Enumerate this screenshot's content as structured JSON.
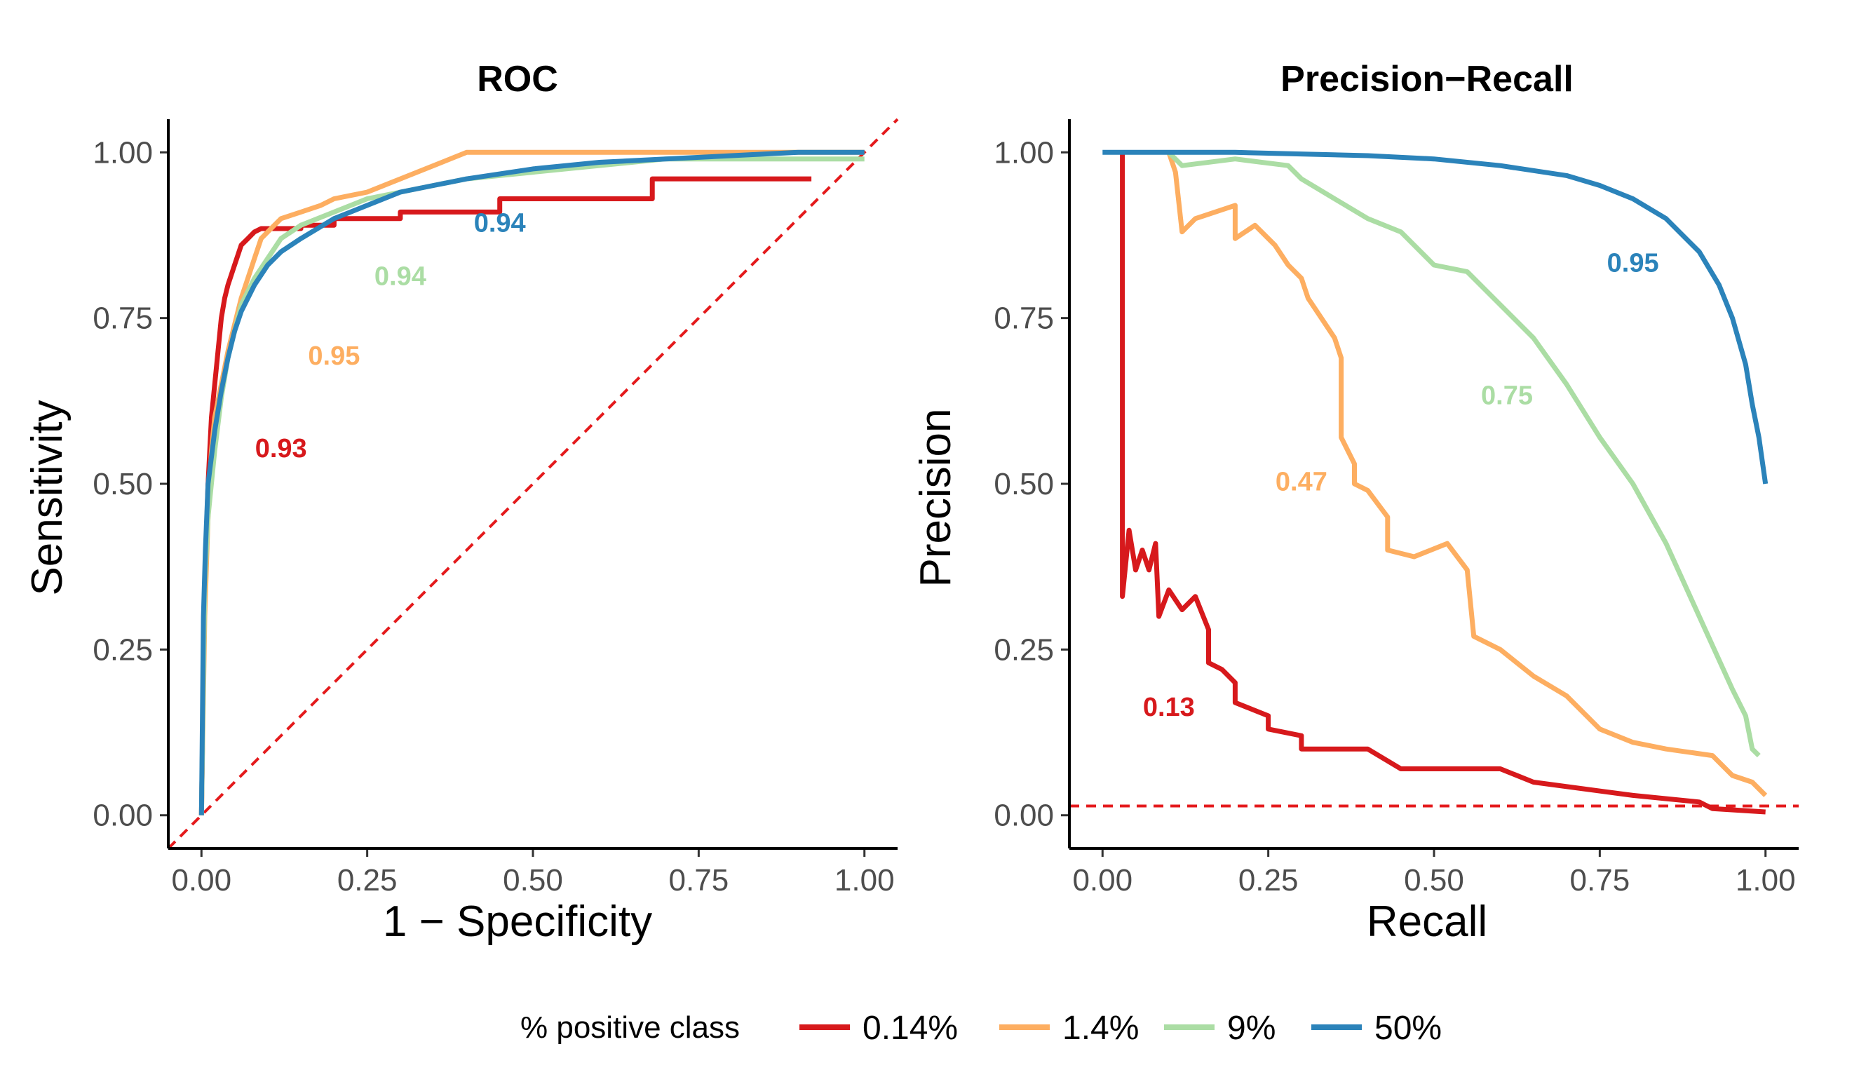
{
  "legend": {
    "title": "% positive class",
    "position": "bottom",
    "items": [
      {
        "label": "0.14%",
        "color": "#d7191c"
      },
      {
        "label": "1.4%",
        "color": "#fdae61"
      },
      {
        "label": "9%",
        "color": "#abdda4"
      },
      {
        "label": "50%",
        "color": "#2b83ba"
      }
    ]
  },
  "chart_data": [
    {
      "type": "line",
      "title": "ROC",
      "xlabel": "1 − Specificity",
      "ylabel": "Sensitivity",
      "xlim": [
        -0.05,
        1.05
      ],
      "ylim": [
        -0.05,
        1.05
      ],
      "xticks": [
        "0.00",
        "0.25",
        "0.50",
        "0.75",
        "1.00"
      ],
      "yticks": [
        "0.00",
        "0.25",
        "0.50",
        "0.75",
        "1.00"
      ],
      "grid": false,
      "reference_line": {
        "type": "diagonal",
        "from": [
          0,
          0
        ],
        "to": [
          1,
          1
        ],
        "color": "#e41a1c",
        "dashed": true
      },
      "series": [
        {
          "name": "0.14%",
          "color": "#d7191c",
          "auc": "0.93",
          "auc_at": [
            0.12,
            0.54
          ],
          "points": [
            [
              0,
              0
            ],
            [
              0.005,
              0.35
            ],
            [
              0.01,
              0.5
            ],
            [
              0.015,
              0.6
            ],
            [
              0.02,
              0.65
            ],
            [
              0.025,
              0.7
            ],
            [
              0.03,
              0.75
            ],
            [
              0.035,
              0.78
            ],
            [
              0.04,
              0.8
            ],
            [
              0.05,
              0.83
            ],
            [
              0.06,
              0.86
            ],
            [
              0.07,
              0.87
            ],
            [
              0.08,
              0.88
            ],
            [
              0.09,
              0.885
            ],
            [
              0.15,
              0.885
            ],
            [
              0.15,
              0.89
            ],
            [
              0.2,
              0.89
            ],
            [
              0.2,
              0.9
            ],
            [
              0.3,
              0.9
            ],
            [
              0.3,
              0.91
            ],
            [
              0.45,
              0.91
            ],
            [
              0.45,
              0.93
            ],
            [
              0.68,
              0.93
            ],
            [
              0.68,
              0.96
            ],
            [
              0.92,
              0.96
            ]
          ]
        },
        {
          "name": "1.4%",
          "color": "#fdae61",
          "auc": "0.95",
          "auc_at": [
            0.2,
            0.68
          ],
          "points": [
            [
              0,
              0
            ],
            [
              0.005,
              0.3
            ],
            [
              0.01,
              0.45
            ],
            [
              0.015,
              0.55
            ],
            [
              0.02,
              0.6
            ],
            [
              0.03,
              0.65
            ],
            [
              0.04,
              0.7
            ],
            [
              0.05,
              0.74
            ],
            [
              0.06,
              0.78
            ],
            [
              0.07,
              0.81
            ],
            [
              0.08,
              0.84
            ],
            [
              0.09,
              0.87
            ],
            [
              0.1,
              0.88
            ],
            [
              0.12,
              0.9
            ],
            [
              0.15,
              0.91
            ],
            [
              0.18,
              0.92
            ],
            [
              0.2,
              0.93
            ],
            [
              0.25,
              0.94
            ],
            [
              0.3,
              0.96
            ],
            [
              0.35,
              0.98
            ],
            [
              0.4,
              1.0
            ],
            [
              1.0,
              1.0
            ]
          ]
        },
        {
          "name": "9%",
          "color": "#abdda4",
          "auc": "0.94",
          "auc_at": [
            0.3,
            0.8
          ],
          "points": [
            [
              0,
              0
            ],
            [
              0.005,
              0.35
            ],
            [
              0.01,
              0.45
            ],
            [
              0.02,
              0.55
            ],
            [
              0.03,
              0.63
            ],
            [
              0.04,
              0.69
            ],
            [
              0.05,
              0.73
            ],
            [
              0.06,
              0.77
            ],
            [
              0.08,
              0.81
            ],
            [
              0.1,
              0.84
            ],
            [
              0.12,
              0.87
            ],
            [
              0.15,
              0.89
            ],
            [
              0.2,
              0.91
            ],
            [
              0.25,
              0.93
            ],
            [
              0.3,
              0.94
            ],
            [
              0.35,
              0.95
            ],
            [
              0.4,
              0.96
            ],
            [
              0.5,
              0.97
            ],
            [
              0.6,
              0.98
            ],
            [
              0.7,
              0.99
            ],
            [
              0.8,
              0.99
            ],
            [
              1.0,
              0.99
            ]
          ]
        },
        {
          "name": "50%",
          "color": "#2b83ba",
          "auc": "0.94",
          "auc_at": [
            0.45,
            0.88
          ],
          "points": [
            [
              0,
              0
            ],
            [
              0.003,
              0.3
            ],
            [
              0.006,
              0.4
            ],
            [
              0.01,
              0.5
            ],
            [
              0.02,
              0.58
            ],
            [
              0.03,
              0.64
            ],
            [
              0.04,
              0.69
            ],
            [
              0.05,
              0.73
            ],
            [
              0.06,
              0.76
            ],
            [
              0.08,
              0.8
            ],
            [
              0.1,
              0.83
            ],
            [
              0.12,
              0.85
            ],
            [
              0.15,
              0.87
            ],
            [
              0.2,
              0.9
            ],
            [
              0.25,
              0.92
            ],
            [
              0.3,
              0.94
            ],
            [
              0.35,
              0.95
            ],
            [
              0.4,
              0.96
            ],
            [
              0.5,
              0.975
            ],
            [
              0.6,
              0.985
            ],
            [
              0.7,
              0.99
            ],
            [
              0.8,
              0.995
            ],
            [
              0.9,
              1.0
            ],
            [
              1.0,
              1.0
            ]
          ]
        }
      ]
    },
    {
      "type": "line",
      "title": "Precision−Recall",
      "xlabel": "Recall",
      "ylabel": "Precision",
      "xlim": [
        -0.05,
        1.05
      ],
      "ylim": [
        -0.05,
        1.05
      ],
      "xticks": [
        "0.00",
        "0.25",
        "0.50",
        "0.75",
        "1.00"
      ],
      "yticks": [
        "0.00",
        "0.25",
        "0.50",
        "0.75",
        "1.00"
      ],
      "grid": false,
      "reference_line": {
        "type": "horizontal",
        "y": 0.014,
        "color": "#e41a1c",
        "dashed": true
      },
      "series": [
        {
          "name": "0.14%",
          "color": "#d7191c",
          "auc": "0.13",
          "auc_at": [
            0.1,
            0.15
          ],
          "points": [
            [
              0.03,
              1.0
            ],
            [
              0.03,
              0.33
            ],
            [
              0.04,
              0.43
            ],
            [
              0.05,
              0.37
            ],
            [
              0.06,
              0.4
            ],
            [
              0.07,
              0.37
            ],
            [
              0.08,
              0.41
            ],
            [
              0.085,
              0.3
            ],
            [
              0.1,
              0.34
            ],
            [
              0.12,
              0.31
            ],
            [
              0.14,
              0.33
            ],
            [
              0.16,
              0.28
            ],
            [
              0.16,
              0.23
            ],
            [
              0.18,
              0.22
            ],
            [
              0.2,
              0.2
            ],
            [
              0.2,
              0.17
            ],
            [
              0.25,
              0.15
            ],
            [
              0.25,
              0.13
            ],
            [
              0.3,
              0.12
            ],
            [
              0.3,
              0.1
            ],
            [
              0.4,
              0.1
            ],
            [
              0.45,
              0.07
            ],
            [
              0.6,
              0.07
            ],
            [
              0.65,
              0.05
            ],
            [
              0.8,
              0.03
            ],
            [
              0.9,
              0.02
            ],
            [
              0.92,
              0.01
            ],
            [
              1.0,
              0.005
            ]
          ]
        },
        {
          "name": "1.4%",
          "color": "#fdae61",
          "auc": "0.47",
          "auc_at": [
            0.3,
            0.49
          ],
          "points": [
            [
              0.1,
              1.0
            ],
            [
              0.11,
              0.97
            ],
            [
              0.12,
              0.88
            ],
            [
              0.14,
              0.9
            ],
            [
              0.2,
              0.92
            ],
            [
              0.2,
              0.87
            ],
            [
              0.23,
              0.89
            ],
            [
              0.26,
              0.86
            ],
            [
              0.28,
              0.83
            ],
            [
              0.3,
              0.81
            ],
            [
              0.31,
              0.78
            ],
            [
              0.33,
              0.75
            ],
            [
              0.35,
              0.72
            ],
            [
              0.36,
              0.69
            ],
            [
              0.36,
              0.57
            ],
            [
              0.38,
              0.53
            ],
            [
              0.38,
              0.5
            ],
            [
              0.4,
              0.49
            ],
            [
              0.43,
              0.45
            ],
            [
              0.43,
              0.4
            ],
            [
              0.47,
              0.39
            ],
            [
              0.52,
              0.41
            ],
            [
              0.55,
              0.37
            ],
            [
              0.56,
              0.27
            ],
            [
              0.6,
              0.25
            ],
            [
              0.65,
              0.21
            ],
            [
              0.7,
              0.18
            ],
            [
              0.73,
              0.15
            ],
            [
              0.75,
              0.13
            ],
            [
              0.8,
              0.11
            ],
            [
              0.85,
              0.1
            ],
            [
              0.92,
              0.09
            ],
            [
              0.95,
              0.06
            ],
            [
              0.98,
              0.05
            ],
            [
              1.0,
              0.03
            ]
          ]
        },
        {
          "name": "9%",
          "color": "#abdda4",
          "auc": "0.75",
          "auc_at": [
            0.61,
            0.62
          ],
          "points": [
            [
              0.1,
              1.0
            ],
            [
              0.12,
              0.98
            ],
            [
              0.2,
              0.99
            ],
            [
              0.28,
              0.98
            ],
            [
              0.3,
              0.96
            ],
            [
              0.35,
              0.93
            ],
            [
              0.4,
              0.9
            ],
            [
              0.45,
              0.88
            ],
            [
              0.5,
              0.83
            ],
            [
              0.55,
              0.82
            ],
            [
              0.6,
              0.77
            ],
            [
              0.65,
              0.72
            ],
            [
              0.7,
              0.65
            ],
            [
              0.75,
              0.57
            ],
            [
              0.8,
              0.5
            ],
            [
              0.85,
              0.41
            ],
            [
              0.9,
              0.3
            ],
            [
              0.95,
              0.19
            ],
            [
              0.97,
              0.15
            ],
            [
              0.98,
              0.1
            ],
            [
              0.99,
              0.09
            ]
          ]
        },
        {
          "name": "50%",
          "color": "#2b83ba",
          "auc": "0.95",
          "auc_at": [
            0.8,
            0.82
          ],
          "points": [
            [
              0.0,
              1.0
            ],
            [
              0.2,
              1.0
            ],
            [
              0.4,
              0.995
            ],
            [
              0.5,
              0.99
            ],
            [
              0.6,
              0.98
            ],
            [
              0.7,
              0.965
            ],
            [
              0.75,
              0.95
            ],
            [
              0.8,
              0.93
            ],
            [
              0.85,
              0.9
            ],
            [
              0.9,
              0.85
            ],
            [
              0.93,
              0.8
            ],
            [
              0.95,
              0.75
            ],
            [
              0.97,
              0.68
            ],
            [
              0.98,
              0.62
            ],
            [
              0.99,
              0.57
            ],
            [
              1.0,
              0.5
            ]
          ]
        }
      ]
    }
  ]
}
